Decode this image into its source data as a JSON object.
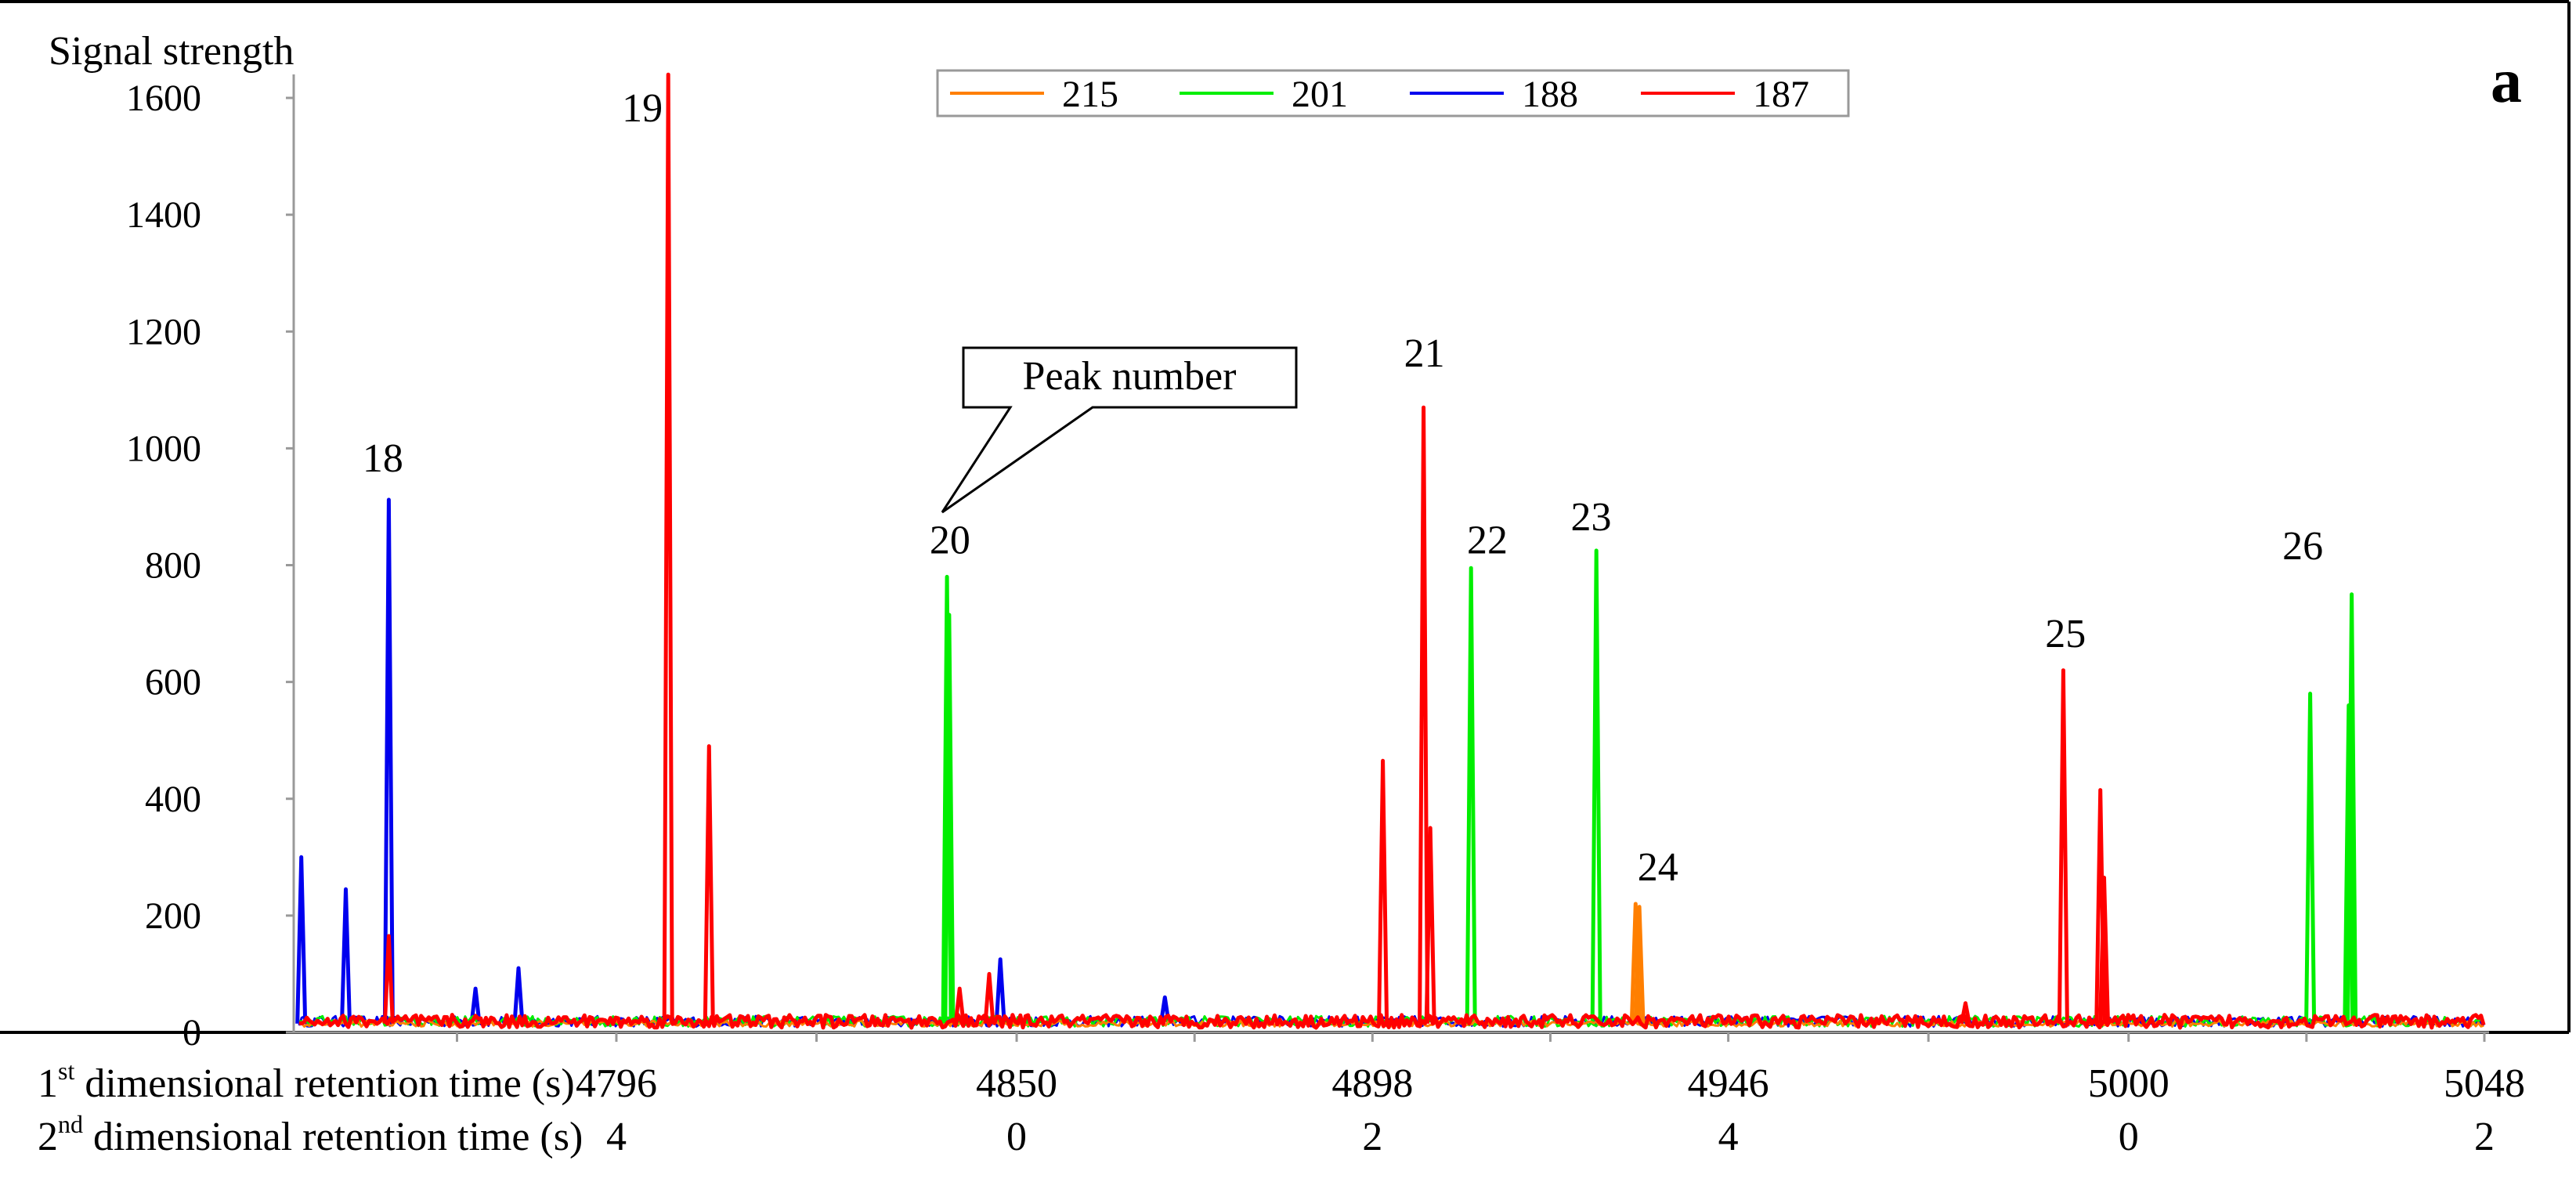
{
  "panel_label": "a",
  "chart_data": {
    "type": "line",
    "ylabel": "Signal strength",
    "ylim": [
      0,
      1650
    ],
    "yticks": [
      0,
      200,
      400,
      600,
      800,
      1000,
      1200,
      1400,
      1600
    ],
    "xlim": [
      4753,
      5048
    ],
    "xaxis_rows": [
      {
        "label_main": "1",
        "label_sup": "st",
        "label_rest": " dimensional retention time (s)",
        "ticks": [
          {
            "x": 4796,
            "label": "4796"
          },
          {
            "x": 4850,
            "label": "4850"
          },
          {
            "x": 4898,
            "label": "4898"
          },
          {
            "x": 4946,
            "label": "4946"
          },
          {
            "x": 5000,
            "label": "5000"
          },
          {
            "x": 5048,
            "label": "5048"
          }
        ]
      },
      {
        "label_main": "2",
        "label_sup": "nd",
        "label_rest": " dimensional retention time (s)",
        "ticks": [
          {
            "x": 4796,
            "label": "4"
          },
          {
            "x": 4850,
            "label": "0"
          },
          {
            "x": 4898,
            "label": "2"
          },
          {
            "x": 4946,
            "label": "4"
          },
          {
            "x": 5000,
            "label": "0"
          },
          {
            "x": 5048,
            "label": "2"
          }
        ]
      }
    ],
    "legend": {
      "position": "top-center"
    },
    "grid": false,
    "series": [
      {
        "name": "215",
        "color": "#FF7F00",
        "peaks": [
          {
            "x": 4933.5,
            "y": 220
          },
          {
            "x": 4934.0,
            "y": 215
          }
        ]
      },
      {
        "name": "201",
        "color": "#00EE00",
        "peaks": [
          {
            "x": 4840.6,
            "y": 780
          },
          {
            "x": 4840.9,
            "y": 715
          },
          {
            "x": 4911.3,
            "y": 795
          },
          {
            "x": 4928.2,
            "y": 825
          },
          {
            "x": 5024.5,
            "y": 580
          },
          {
            "x": 5029.7,
            "y": 560
          },
          {
            "x": 5030.1,
            "y": 750
          }
        ]
      },
      {
        "name": "188",
        "color": "#0000EE",
        "peaks": [
          {
            "x": 4753.5,
            "y": 300
          },
          {
            "x": 4759.5,
            "y": 245
          },
          {
            "x": 4765.3,
            "y": 912
          },
          {
            "x": 4777.0,
            "y": 75
          },
          {
            "x": 4782.8,
            "y": 110
          },
          {
            "x": 4847.8,
            "y": 125
          },
          {
            "x": 4870.0,
            "y": 60
          }
        ]
      },
      {
        "name": "187",
        "color": "#FF0000",
        "peaks": [
          {
            "x": 4765.3,
            "y": 165
          },
          {
            "x": 4803.0,
            "y": 1640
          },
          {
            "x": 4808.5,
            "y": 490
          },
          {
            "x": 4842.3,
            "y": 75
          },
          {
            "x": 4846.3,
            "y": 100
          },
          {
            "x": 4899.4,
            "y": 465
          },
          {
            "x": 4904.9,
            "y": 1070
          },
          {
            "x": 4905.8,
            "y": 350
          },
          {
            "x": 4991.2,
            "y": 620
          },
          {
            "x": 4996.2,
            "y": 415
          },
          {
            "x": 4996.7,
            "y": 265
          },
          {
            "x": 4978.0,
            "y": 50
          }
        ]
      }
    ],
    "annotations": [
      {
        "text": "18",
        "x": 4764.5,
        "y": 960
      },
      {
        "text": "19",
        "x": 4799.5,
        "y": 1560
      },
      {
        "text": "20",
        "x": 4841.0,
        "y": 820
      },
      {
        "text": "21",
        "x": 4905.0,
        "y": 1140
      },
      {
        "text": "22",
        "x": 4913.5,
        "y": 820
      },
      {
        "text": "23",
        "x": 4927.5,
        "y": 860
      },
      {
        "text": "24",
        "x": 4936.5,
        "y": 260
      },
      {
        "text": "25",
        "x": 4991.5,
        "y": 660
      },
      {
        "text": "26",
        "x": 5023.5,
        "y": 810
      }
    ],
    "callout": {
      "text": "Peak number",
      "points_to": "20"
    }
  }
}
